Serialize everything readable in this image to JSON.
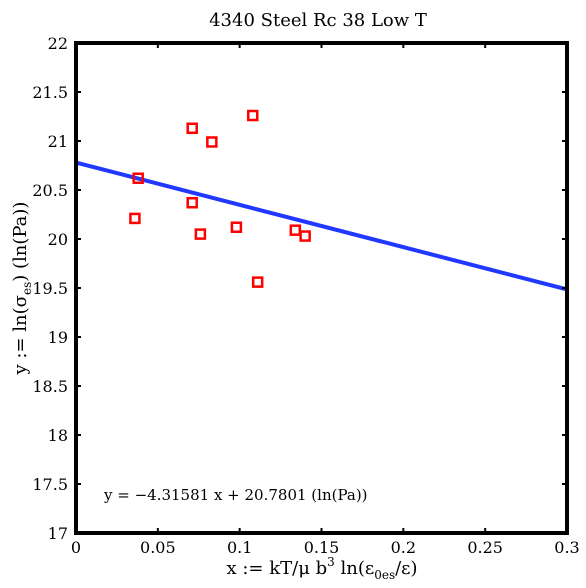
{
  "chart_data": {
    "type": "scatter",
    "title": "4340 Steel Rc 38 Low T",
    "xlabel": {
      "base": "x := kT/μ b",
      "sup": "3",
      "mid": " ln(ε",
      "sub": "0es",
      "end": "/ε)"
    },
    "ylabel": {
      "base": "y := ln(σ",
      "sub": "es",
      "end": ") (ln(Pa))"
    },
    "xlim": [
      0,
      0.3
    ],
    "ylim": [
      17,
      22
    ],
    "xticks": [
      "0",
      "0.05",
      "0.1",
      "0.15",
      "0.2",
      "0.25",
      "0.3"
    ],
    "yticks": [
      "17",
      "17.5",
      "18",
      "18.5",
      "19",
      "19.5",
      "20",
      "20.5",
      "21",
      "21.5",
      "22"
    ],
    "grid": false,
    "points": [
      {
        "x": 0.036,
        "y": 20.21
      },
      {
        "x": 0.038,
        "y": 20.62
      },
      {
        "x": 0.071,
        "y": 21.13
      },
      {
        "x": 0.071,
        "y": 20.37
      },
      {
        "x": 0.076,
        "y": 20.05
      },
      {
        "x": 0.083,
        "y": 20.99
      },
      {
        "x": 0.098,
        "y": 20.12
      },
      {
        "x": 0.108,
        "y": 21.26
      },
      {
        "x": 0.111,
        "y": 19.56
      },
      {
        "x": 0.134,
        "y": 20.09
      },
      {
        "x": 0.14,
        "y": 20.03
      }
    ],
    "fit": {
      "slope": -4.31581,
      "intercept": 20.7801
    },
    "annotation": "y = −4.31581 x + 20.7801 (ln(Pa))",
    "colors": {
      "points": "#ff0000",
      "fit": "#2038ff",
      "axes": "#000000"
    }
  }
}
